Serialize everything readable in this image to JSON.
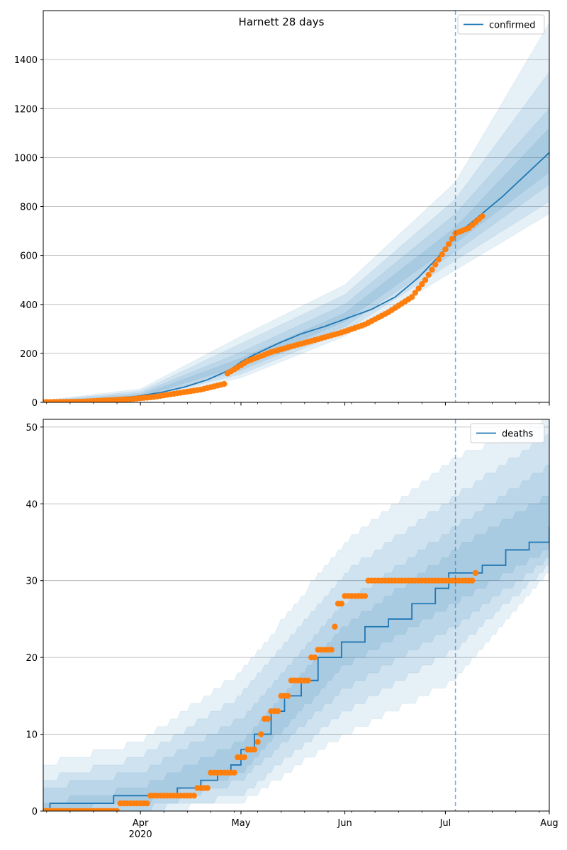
{
  "figure": {
    "title": "Harnett 28 days"
  },
  "colors": {
    "model_line": "#1f77b4",
    "observed": "#ff7f0e",
    "band": "#1f77b4",
    "grid": "#b0b0b0",
    "spine": "#000000"
  },
  "x_axis": {
    "range": [
      "2020-03-03",
      "2020-08-01"
    ],
    "major_ticks": [
      {
        "date": "2020-04-01",
        "label": "Apr",
        "sublabel": "2020"
      },
      {
        "date": "2020-05-01",
        "label": "May"
      },
      {
        "date": "2020-06-01",
        "label": "Jun"
      },
      {
        "date": "2020-07-01",
        "label": "Jul"
      },
      {
        "date": "2020-08-01",
        "label": "Aug"
      }
    ],
    "minor_tick_step_days": 7,
    "forecast_start": "2020-07-04"
  },
  "chart_data": [
    {
      "type": "line",
      "panel": "confirmed",
      "legend": "confirmed",
      "legend_position": "top-right",
      "grid": "y-major",
      "ylim": [
        0,
        1600
      ],
      "yticks": [
        0,
        200,
        400,
        600,
        800,
        1000,
        1200,
        1400
      ],
      "model": {
        "name": "confirmed",
        "knots": [
          [
            "2020-03-03",
            1
          ],
          [
            "2020-03-10",
            3
          ],
          [
            "2020-03-17",
            8
          ],
          [
            "2020-03-24",
            15
          ],
          [
            "2020-03-31",
            25
          ],
          [
            "2020-04-07",
            40
          ],
          [
            "2020-04-14",
            62
          ],
          [
            "2020-04-21",
            92
          ],
          [
            "2020-04-28",
            135
          ],
          [
            "2020-05-01",
            165
          ],
          [
            "2020-05-05",
            195
          ],
          [
            "2020-05-12",
            240
          ],
          [
            "2020-05-19",
            280
          ],
          [
            "2020-05-26",
            310
          ],
          [
            "2020-06-02",
            345
          ],
          [
            "2020-06-09",
            380
          ],
          [
            "2020-06-16",
            430
          ],
          [
            "2020-06-23",
            510
          ],
          [
            "2020-06-30",
            610
          ],
          [
            "2020-07-04",
            680
          ],
          [
            "2020-07-11",
            760
          ],
          [
            "2020-07-18",
            840
          ],
          [
            "2020-07-25",
            930
          ],
          [
            "2020-08-01",
            1020
          ]
        ],
        "bands": [
          {
            "q": "25-75",
            "knots": [
              [
                "2020-03-03",
                0,
                2
              ],
              [
                "2020-04-01",
                22,
                30
              ],
              [
                "2020-05-01",
                150,
                180
              ],
              [
                "2020-06-01",
                330,
                365
              ],
              [
                "2020-07-04",
                650,
                715
              ],
              [
                "2020-08-01",
                940,
                1120
              ]
            ]
          },
          {
            "q": "10-90",
            "knots": [
              [
                "2020-03-03",
                0,
                4
              ],
              [
                "2020-04-01",
                18,
                38
              ],
              [
                "2020-05-01",
                130,
                205
              ],
              [
                "2020-06-01",
                310,
                400
              ],
              [
                "2020-07-04",
                615,
                770
              ],
              [
                "2020-08-01",
                890,
                1200
              ]
            ]
          },
          {
            "q": "2.5-97.5",
            "knots": [
              [
                "2020-03-03",
                0,
                6
              ],
              [
                "2020-04-01",
                14,
                46
              ],
              [
                "2020-05-01",
                115,
                240
              ],
              [
                "2020-06-01",
                290,
                440
              ],
              [
                "2020-07-04",
                580,
                830
              ],
              [
                "2020-08-01",
                820,
                1350
              ]
            ]
          },
          {
            "q": "0.5-99.5",
            "knots": [
              [
                "2020-03-03",
                0,
                8
              ],
              [
                "2020-04-01",
                10,
                55
              ],
              [
                "2020-05-01",
                100,
                270
              ],
              [
                "2020-06-01",
                270,
                480
              ],
              [
                "2020-07-04",
                540,
                900
              ],
              [
                "2020-08-01",
                770,
                1550
              ]
            ]
          }
        ]
      },
      "observed": {
        "knots": [
          [
            "2020-03-03",
            1
          ],
          [
            "2020-03-15",
            3
          ],
          [
            "2020-03-22",
            8
          ],
          [
            "2020-03-29",
            13
          ],
          [
            "2020-04-05",
            22
          ],
          [
            "2020-04-12",
            37
          ],
          [
            "2020-04-19",
            52
          ],
          [
            "2020-04-26",
            75
          ],
          [
            "2020-04-27",
            118
          ],
          [
            "2020-05-03",
            168
          ],
          [
            "2020-05-10",
            205
          ],
          [
            "2020-05-17",
            232
          ],
          [
            "2020-05-24",
            258
          ],
          [
            "2020-05-31",
            285
          ],
          [
            "2020-06-07",
            318
          ],
          [
            "2020-06-14",
            368
          ],
          [
            "2020-06-21",
            430
          ],
          [
            "2020-06-25",
            500
          ],
          [
            "2020-07-01",
            625
          ],
          [
            "2020-07-04",
            690
          ],
          [
            "2020-07-08",
            712
          ],
          [
            "2020-07-12",
            760
          ]
        ],
        "start": "2020-03-03",
        "end": "2020-07-12"
      }
    },
    {
      "type": "line",
      "panel": "deaths",
      "legend": "deaths",
      "legend_position": "top-right",
      "grid": "y-major",
      "ylim": [
        0,
        51
      ],
      "yticks": [
        0,
        10,
        20,
        30,
        40,
        50
      ],
      "model": {
        "name": "deaths",
        "step": true,
        "knots": [
          [
            "2020-03-03",
            0
          ],
          [
            "2020-03-05",
            1
          ],
          [
            "2020-03-24",
            2
          ],
          [
            "2020-04-12",
            3
          ],
          [
            "2020-04-19",
            4
          ],
          [
            "2020-04-24",
            5
          ],
          [
            "2020-04-28",
            6
          ],
          [
            "2020-05-01",
            8
          ],
          [
            "2020-05-05",
            10
          ],
          [
            "2020-05-10",
            13
          ],
          [
            "2020-05-14",
            15
          ],
          [
            "2020-05-19",
            17
          ],
          [
            "2020-05-24",
            20
          ],
          [
            "2020-05-31",
            22
          ],
          [
            "2020-06-07",
            24
          ],
          [
            "2020-06-14",
            25
          ],
          [
            "2020-06-21",
            27
          ],
          [
            "2020-06-28",
            29
          ],
          [
            "2020-07-02",
            31
          ],
          [
            "2020-07-07",
            31
          ],
          [
            "2020-07-12",
            32
          ],
          [
            "2020-07-19",
            34
          ],
          [
            "2020-07-26",
            35
          ],
          [
            "2020-08-01",
            37
          ]
        ],
        "bands": [
          {
            "q": "25-75",
            "knots": [
              [
                "2020-03-03",
                0,
                1
              ],
              [
                "2020-04-01",
                1,
                3
              ],
              [
                "2020-05-01",
                5,
                9
              ],
              [
                "2020-06-01",
                19,
                24
              ],
              [
                "2020-07-04",
                27,
                34
              ],
              [
                "2020-08-01",
                34,
                41
              ]
            ]
          },
          {
            "q": "10-90",
            "knots": [
              [
                "2020-03-03",
                0,
                3
              ],
              [
                "2020-04-01",
                0,
                5
              ],
              [
                "2020-05-01",
                4,
                12
              ],
              [
                "2020-06-01",
                16,
                27
              ],
              [
                "2020-07-04",
                24,
                37
              ],
              [
                "2020-08-01",
                33,
                45
              ]
            ]
          },
          {
            "q": "2.5-97.5",
            "knots": [
              [
                "2020-03-03",
                0,
                4
              ],
              [
                "2020-04-01",
                0,
                7
              ],
              [
                "2020-05-01",
                2,
                15
              ],
              [
                "2020-06-01",
                13,
                31
              ],
              [
                "2020-07-04",
                21,
                41
              ],
              [
                "2020-08-01",
                32,
                49
              ]
            ]
          },
          {
            "q": "0.5-99.5",
            "knots": [
              [
                "2020-03-03",
                0,
                6
              ],
              [
                "2020-04-01",
                0,
                9
              ],
              [
                "2020-05-01",
                1,
                18
              ],
              [
                "2020-06-01",
                10,
                35
              ],
              [
                "2020-07-04",
                17,
                46
              ],
              [
                "2020-08-01",
                31,
                51
              ]
            ]
          }
        ]
      },
      "observed": {
        "step": true,
        "knots": [
          [
            "2020-03-03",
            0
          ],
          [
            "2020-03-26",
            1
          ],
          [
            "2020-04-04",
            2
          ],
          [
            "2020-04-18",
            3
          ],
          [
            "2020-04-22",
            5
          ],
          [
            "2020-04-30",
            7
          ],
          [
            "2020-05-03",
            8
          ],
          [
            "2020-05-06",
            9
          ],
          [
            "2020-05-07",
            10
          ],
          [
            "2020-05-08",
            12
          ],
          [
            "2020-05-10",
            13
          ],
          [
            "2020-05-13",
            15
          ],
          [
            "2020-05-16",
            17
          ],
          [
            "2020-05-22",
            20
          ],
          [
            "2020-05-24",
            21
          ],
          [
            "2020-05-29",
            24
          ],
          [
            "2020-05-30",
            27
          ],
          [
            "2020-06-01",
            28
          ],
          [
            "2020-06-08",
            30
          ],
          [
            "2020-07-10",
            31
          ]
        ],
        "start": "2020-03-03",
        "end": "2020-07-10"
      }
    }
  ]
}
